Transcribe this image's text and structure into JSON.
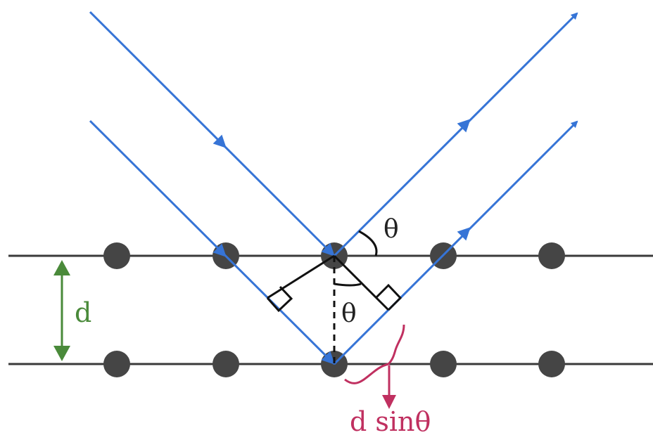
{
  "labels": {
    "theta_outer": "θ",
    "theta_inner": "θ",
    "spacing": "d",
    "path_difference": "d sinθ"
  },
  "colors": {
    "ray": "#3674d6",
    "plane": "#3a3a3a",
    "atom": "#454545",
    "construction": "#111111",
    "spacing": "#4a8a3a",
    "path_difference": "#c03060"
  },
  "atoms_per_plane": 5,
  "atomic_planes": 2
}
